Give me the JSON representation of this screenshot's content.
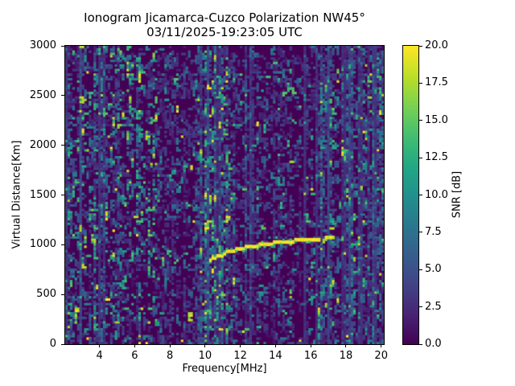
{
  "chart_data": {
    "type": "heatmap",
    "title": "Ionogram Jicamarca-Cuzco Polarization NW45°",
    "subtitle": "03/11/2025-19:23:05 UTC",
    "xlabel": "Frequency[MHz]",
    "ylabel": "Virtual Distance[Km]",
    "x_range": [
      2.05,
      20.15
    ],
    "y_range": [
      0,
      3000
    ],
    "x_ticks": [
      4,
      6,
      8,
      10,
      12,
      14,
      16,
      18,
      20
    ],
    "y_ticks": [
      0,
      500,
      1000,
      1500,
      2000,
      2500,
      3000
    ],
    "grid": false,
    "colorbar": {
      "label": "SNR [dB]",
      "range": [
        0,
        20
      ],
      "ticks": [
        0.0,
        2.5,
        5.0,
        7.5,
        10.0,
        12.5,
        15.0,
        17.5,
        20.0
      ]
    },
    "colormap": {
      "name": "viridis",
      "stops": [
        [
          0.0,
          "#440154"
        ],
        [
          0.1,
          "#482475"
        ],
        [
          0.2,
          "#414487"
        ],
        [
          0.3,
          "#355f8d"
        ],
        [
          0.4,
          "#2a788e"
        ],
        [
          0.5,
          "#21918c"
        ],
        [
          0.6,
          "#22a884"
        ],
        [
          0.7,
          "#44bf70"
        ],
        [
          0.8,
          "#7ad151"
        ],
        [
          0.9,
          "#bddf26"
        ],
        [
          1.0,
          "#fde725"
        ]
      ]
    },
    "echo_trace": {
      "description": "F-region oblique echo trace (bright yellow, ~20 dB), solid then dashed near upper frequency end",
      "snr_db": 20,
      "solid_until_mhz": 16.2,
      "points_mhz_km": [
        [
          10.35,
          842
        ],
        [
          10.6,
          868
        ],
        [
          10.9,
          900
        ],
        [
          11.3,
          928
        ],
        [
          11.8,
          952
        ],
        [
          12.3,
          972
        ],
        [
          12.8,
          988
        ],
        [
          13.3,
          1002
        ],
        [
          13.8,
          1014
        ],
        [
          14.3,
          1025
        ],
        [
          14.8,
          1034
        ],
        [
          15.3,
          1042
        ],
        [
          15.8,
          1049
        ],
        [
          16.2,
          1055
        ],
        [
          16.5,
          1060
        ],
        [
          16.9,
          1066
        ],
        [
          17.3,
          1073
        ],
        [
          17.6,
          1079
        ]
      ]
    },
    "noise": {
      "seed": 20250311,
      "grid": {
        "nx": 135,
        "ny": 130
      },
      "bands": [
        {
          "f0": 2.05,
          "f1": 3.1,
          "density": 0.36,
          "mix": "bright",
          "line_prob": 0.1
        },
        {
          "f0": 3.1,
          "f1": 5.2,
          "density": 0.4,
          "mix": "bright",
          "line_prob": 0.12
        },
        {
          "f0": 5.2,
          "f1": 7.3,
          "density": 0.34,
          "mix": "bright",
          "line_prob": 0.1
        },
        {
          "f0": 7.3,
          "f1": 9.7,
          "density": 0.26,
          "mix": "dim",
          "line_prob": 0.08
        },
        {
          "f0": 9.7,
          "f1": 11.4,
          "density": 0.5,
          "mix": "bright",
          "line_prob": 0.25
        },
        {
          "f0": 11.4,
          "f1": 13.2,
          "density": 0.26,
          "mix": "dim",
          "line_prob": 0.06
        },
        {
          "f0": 13.2,
          "f1": 16.4,
          "density": 0.24,
          "mix": "dim",
          "line_prob": 0.06
        },
        {
          "f0": 16.4,
          "f1": 18.0,
          "density": 0.4,
          "mix": "mid",
          "line_prob": 0.3
        },
        {
          "f0": 18.0,
          "f1": 19.6,
          "density": 0.46,
          "mix": "mid",
          "line_prob": 0.35
        },
        {
          "f0": 19.6,
          "f1": 20.15,
          "density": 0.38,
          "mix": "mid",
          "line_prob": 0.25
        }
      ],
      "mixes": {
        "bright": [
          0.45,
          0.75,
          0.93
        ],
        "mid": [
          0.55,
          0.85,
          0.96
        ],
        "dim": [
          0.7,
          0.92,
          0.985
        ]
      }
    }
  }
}
